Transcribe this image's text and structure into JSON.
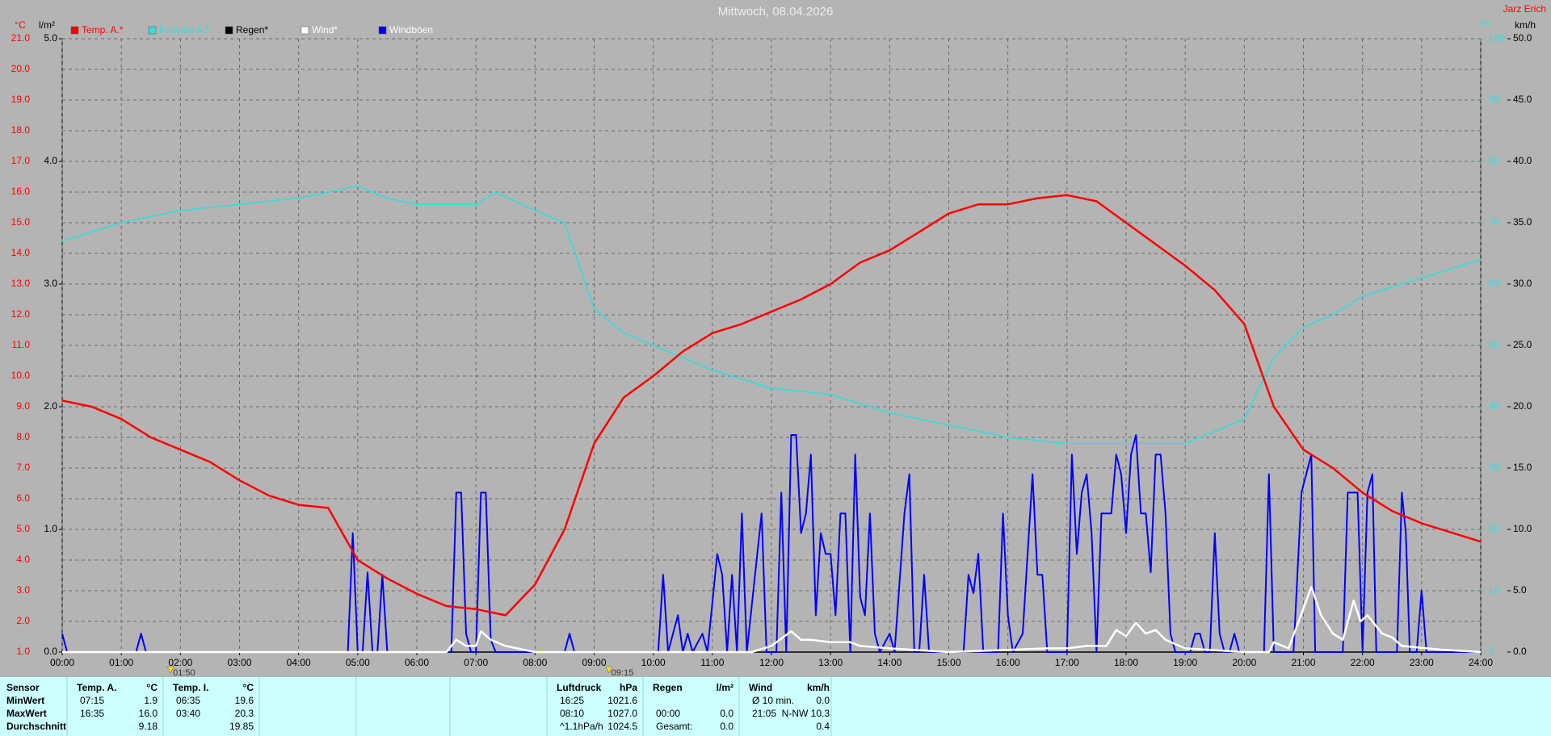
{
  "chart_data": {
    "type": "line",
    "title": "Mittwoch, 08.04.2026",
    "station": "Jarz Erich",
    "y_unit": "°C",
    "y3_unit": "l/m²",
    "y4_unit": "%",
    "y2_unit": "km/h",
    "xlim": [
      0,
      1440
    ],
    "xticks": [
      {
        "value": 0,
        "label": "00:00"
      },
      {
        "value": 60,
        "label": "01:00"
      },
      {
        "value": 120,
        "label": "02:00"
      },
      {
        "value": 180,
        "label": "03:00"
      },
      {
        "value": 240,
        "label": "04:00"
      },
      {
        "value": 300,
        "label": "05:00"
      },
      {
        "value": 360,
        "label": "06:00"
      },
      {
        "value": 420,
        "label": "07:00"
      },
      {
        "value": 480,
        "label": "08:00"
      },
      {
        "value": 540,
        "label": "09:00"
      },
      {
        "value": 600,
        "label": "10:00"
      },
      {
        "value": 660,
        "label": "11:00"
      },
      {
        "value": 720,
        "label": "12:00"
      },
      {
        "value": 780,
        "label": "13:00"
      },
      {
        "value": 840,
        "label": "14:00"
      },
      {
        "value": 900,
        "label": "15:00"
      },
      {
        "value": 960,
        "label": "16:00"
      },
      {
        "value": 1020,
        "label": "17:00"
      },
      {
        "value": 1080,
        "label": "18:00"
      },
      {
        "value": 1140,
        "label": "19:00"
      },
      {
        "value": 1200,
        "label": "20:00"
      },
      {
        "value": 1260,
        "label": "21:00"
      },
      {
        "value": 1320,
        "label": "22:00"
      },
      {
        "value": 1380,
        "label": "23:00"
      },
      {
        "value": 1440,
        "label": "24:00"
      }
    ],
    "ylim": [
      1,
      21
    ],
    "yticks": [
      {
        "value": 1,
        "label": "1.0"
      },
      {
        "value": 2,
        "label": "2.0"
      },
      {
        "value": 3,
        "label": "3.0"
      },
      {
        "value": 4,
        "label": "4.0"
      },
      {
        "value": 5,
        "label": "5.0"
      },
      {
        "value": 6,
        "label": "6.0"
      },
      {
        "value": 7,
        "label": "7.0"
      },
      {
        "value": 8,
        "label": "8.0"
      },
      {
        "value": 9,
        "label": "9.0"
      },
      {
        "value": 10,
        "label": "10.0"
      },
      {
        "value": 11,
        "label": "11.0"
      },
      {
        "value": 12,
        "label": "12.0"
      },
      {
        "value": 13,
        "label": "13.0"
      },
      {
        "value": 14,
        "label": "14.0"
      },
      {
        "value": 15,
        "label": "15.0"
      },
      {
        "value": 16,
        "label": "16.0"
      },
      {
        "value": 17,
        "label": "17.0"
      },
      {
        "value": 18,
        "label": "18.0"
      },
      {
        "value": 19,
        "label": "19.0"
      },
      {
        "value": 20,
        "label": "20.0"
      },
      {
        "value": 21,
        "label": "21.0"
      }
    ],
    "y3lim": [
      0,
      5
    ],
    "y3ticks": [
      {
        "value": 0,
        "label": "0.0"
      },
      {
        "value": 1,
        "label": "1.0"
      },
      {
        "value": 2,
        "label": "2.0"
      },
      {
        "value": 3,
        "label": "3.0"
      },
      {
        "value": 4,
        "label": "4.0"
      },
      {
        "value": 5,
        "label": "5.0"
      }
    ],
    "y4lim": [
      0,
      100
    ],
    "y4ticks": [
      0,
      10,
      20,
      30,
      40,
      50,
      60,
      70,
      80,
      90,
      100
    ],
    "y2lim": [
      0,
      50
    ],
    "y2ticks": [
      {
        "value": 0,
        "label": "0.0"
      },
      {
        "value": 5,
        "label": "5.0"
      },
      {
        "value": 10,
        "label": "10.0"
      },
      {
        "value": 15,
        "label": "15.0"
      },
      {
        "value": 20,
        "label": "20.0"
      },
      {
        "value": 25,
        "label": "25.0"
      },
      {
        "value": 30,
        "label": "30.0"
      },
      {
        "value": 35,
        "label": "35.0"
      },
      {
        "value": 40,
        "label": "40.0"
      },
      {
        "value": 45,
        "label": "45.0"
      },
      {
        "value": 50,
        "label": "50.0"
      }
    ],
    "grid": true,
    "series": [
      {
        "name": "Temp. A.*",
        "color": "#ff0000",
        "axis": "y",
        "x": [
          0,
          30,
          60,
          90,
          120,
          150,
          180,
          210,
          240,
          270,
          300,
          330,
          360,
          390,
          420,
          450,
          480,
          510,
          540,
          570,
          600,
          630,
          660,
          690,
          720,
          750,
          780,
          810,
          840,
          870,
          900,
          930,
          960,
          990,
          1020,
          1050,
          1080,
          1110,
          1140,
          1170,
          1200,
          1230,
          1260,
          1290,
          1320,
          1350,
          1380,
          1410,
          1440
        ],
        "values": [
          9.2,
          9.0,
          8.6,
          8.0,
          7.6,
          7.2,
          6.6,
          6.1,
          5.8,
          5.7,
          4.0,
          3.4,
          2.9,
          2.5,
          2.4,
          2.2,
          3.2,
          5.0,
          7.8,
          9.3,
          10.0,
          10.8,
          11.4,
          11.7,
          12.1,
          12.5,
          13.0,
          13.7,
          14.1,
          14.7,
          15.3,
          15.6,
          15.6,
          15.8,
          15.9,
          15.7,
          15.0,
          14.3,
          13.6,
          12.8,
          11.7,
          9.0,
          7.6,
          7.0,
          6.2,
          5.6,
          5.2,
          4.9,
          4.6
        ]
      },
      {
        "name": "Feuchte A.*",
        "color": "#33dddd",
        "axis": "y4",
        "x": [
          0,
          60,
          120,
          180,
          240,
          270,
          300,
          330,
          360,
          420,
          440,
          480,
          510,
          540,
          570,
          600,
          630,
          660,
          720,
          780,
          840,
          900,
          960,
          1020,
          1080,
          1140,
          1170,
          1200,
          1230,
          1260,
          1290,
          1320,
          1380,
          1440
        ],
        "values": [
          67,
          70,
          72,
          73,
          74,
          75,
          76,
          74,
          73,
          73,
          75,
          72,
          70,
          56,
          52,
          50,
          48,
          46,
          43,
          42,
          39,
          37,
          35,
          34,
          34,
          34,
          36,
          38,
          48,
          53,
          55,
          58,
          61,
          64
        ]
      },
      {
        "name": "Regen*",
        "color": "#000000",
        "axis": "y3",
        "x": [
          0,
          1440
        ],
        "values": [
          0,
          0
        ]
      },
      {
        "name": "Wind*",
        "color": "#ffffff",
        "axis": "y2",
        "x": [
          0,
          390,
          400,
          410,
          420,
          425,
          435,
          450,
          480,
          700,
          720,
          740,
          750,
          760,
          780,
          800,
          810,
          840,
          900,
          1000,
          1020,
          1040,
          1060,
          1070,
          1080,
          1090,
          1100,
          1110,
          1120,
          1140,
          1200,
          1225,
          1230,
          1245,
          1268,
          1278,
          1290,
          1300,
          1311,
          1318,
          1325,
          1340,
          1350,
          1360,
          1400,
          1440
        ],
        "values": [
          0,
          0,
          1,
          0.5,
          0.5,
          1.7,
          1,
          0.5,
          0,
          0,
          0.5,
          1.7,
          1,
          1,
          0.8,
          0.8,
          0.5,
          0.3,
          0,
          0.3,
          0.3,
          0.5,
          0.5,
          1.8,
          1.3,
          2.4,
          1.5,
          1.8,
          1,
          0.3,
          0,
          0,
          0.8,
          0.3,
          5.3,
          3,
          1.5,
          1,
          4.2,
          2.5,
          3,
          1.5,
          1.2,
          0.5,
          0.2,
          0
        ]
      },
      {
        "name": "Windböen",
        "color": "#0000ff",
        "axis": "y2",
        "x": [
          0,
          5,
          75,
          80,
          85,
          290,
          295,
          300,
          305,
          310,
          315,
          320,
          325,
          330,
          395,
          400,
          405,
          410,
          415,
          420,
          425,
          430,
          435,
          440,
          510,
          515,
          520,
          605,
          610,
          615,
          625,
          630,
          635,
          640,
          650,
          655,
          665,
          670,
          675,
          680,
          685,
          690,
          695,
          710,
          715,
          725,
          730,
          735,
          740,
          745,
          750,
          755,
          760,
          765,
          770,
          775,
          780,
          785,
          790,
          795,
          800,
          805,
          810,
          815,
          820,
          825,
          830,
          840,
          845,
          855,
          860,
          865,
          870,
          875,
          880,
          915,
          920,
          925,
          930,
          935,
          950,
          955,
          960,
          965,
          975,
          985,
          990,
          995,
          1000,
          1020,
          1025,
          1030,
          1035,
          1040,
          1045,
          1050,
          1055,
          1060,
          1065,
          1070,
          1075,
          1080,
          1085,
          1090,
          1095,
          1100,
          1105,
          1110,
          1115,
          1120,
          1125,
          1130,
          1145,
          1150,
          1155,
          1160,
          1165,
          1170,
          1175,
          1180,
          1185,
          1190,
          1195,
          1220,
          1225,
          1230,
          1250,
          1258,
          1268,
          1272,
          1300,
          1305,
          1315,
          1320,
          1325,
          1330,
          1334,
          1355,
          1360,
          1364,
          1368,
          1375,
          1380,
          1385,
          1440
        ],
        "values": [
          1.5,
          0,
          0,
          1.5,
          0,
          0,
          9.7,
          0,
          0,
          6.5,
          0,
          0,
          6.3,
          0,
          0,
          13,
          13,
          1.5,
          0,
          0,
          13,
          13,
          1,
          0,
          0,
          1.5,
          0,
          0,
          6.3,
          0,
          3,
          0,
          1.5,
          0,
          1.5,
          0,
          8,
          6.3,
          0,
          6.3,
          0,
          11.3,
          0,
          11.3,
          0,
          0,
          13,
          0,
          17.7,
          17.7,
          9.7,
          11.3,
          16.1,
          3,
          9.7,
          8,
          8,
          3,
          11.3,
          11.3,
          0,
          16.1,
          4.5,
          3,
          11.3,
          1.5,
          0,
          1.5,
          0,
          11.3,
          14.5,
          0,
          0,
          6.3,
          0,
          0,
          6.3,
          4.8,
          8,
          0,
          0,
          11.3,
          3,
          0,
          1.5,
          14.5,
          6.3,
          6.3,
          0,
          0,
          16.1,
          8,
          13,
          14.5,
          9.7,
          0,
          11.3,
          11.3,
          11.3,
          16.1,
          14.5,
          9.7,
          16.1,
          17.7,
          11.3,
          11.3,
          6.5,
          16.1,
          16.1,
          11.3,
          1.5,
          0,
          0,
          1.5,
          1.5,
          0,
          0,
          9.7,
          1.5,
          0,
          0,
          1.5,
          0,
          0,
          14.5,
          0,
          0,
          13,
          16.1,
          0,
          0,
          13,
          13,
          0,
          13,
          14.5,
          0,
          0,
          13,
          9.7,
          0,
          0,
          5,
          0,
          0
        ]
      }
    ],
    "annotations": [
      {
        "x": 110,
        "label": "01:50"
      },
      {
        "x": 555,
        "label": "09:15"
      }
    ]
  },
  "stats": {
    "row_labels": [
      "Sensor",
      "MinWert",
      "MaxWert",
      "Durchschnitt"
    ],
    "blocks": [
      {
        "title": "Temp. A.",
        "unit": "°C",
        "rows": [
          [
            "07:15",
            "1.9"
          ],
          [
            "16:35",
            "16.0"
          ],
          [
            null,
            "9.18"
          ]
        ]
      },
      {
        "title": "Temp. I.",
        "unit": "°C",
        "rows": [
          [
            "06:35",
            "19.6"
          ],
          [
            "03:40",
            "20.3"
          ],
          [
            null,
            "19.85"
          ]
        ]
      },
      {
        "title": "Luftdruck",
        "unit": "hPa",
        "rows": [
          [
            "16:25",
            "1021.6"
          ],
          [
            "08:10",
            "1027.0"
          ],
          [
            "^1.1hPa/h",
            "1024.5"
          ]
        ]
      },
      {
        "title": "Regen",
        "unit": "l/m²",
        "rows": [
          [
            null,
            null
          ],
          [
            "00:00",
            "0.0"
          ],
          [
            "Gesamt:",
            "0.0"
          ]
        ]
      },
      {
        "title": "Wind",
        "unit": "km/h",
        "rows": [
          [
            "Ø 10 min.",
            "0.0"
          ],
          [
            "21:05",
            "N-NW 10.3"
          ],
          [
            null,
            "0.4"
          ]
        ]
      }
    ]
  }
}
